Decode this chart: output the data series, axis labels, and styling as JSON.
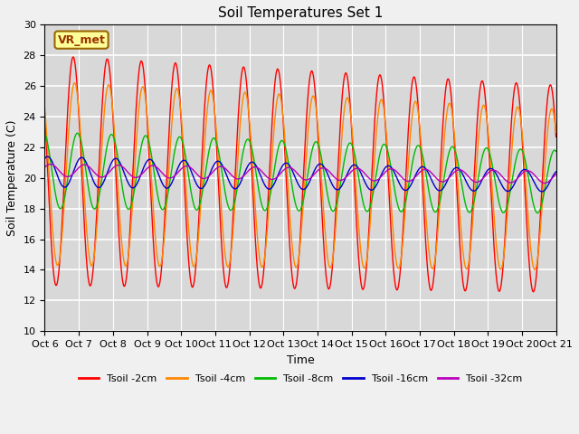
{
  "title": "Soil Temperatures Set 1",
  "xlabel": "Time",
  "ylabel": "Soil Temperature (C)",
  "ylim": [
    10,
    30
  ],
  "xlim": [
    0,
    360
  ],
  "plot_bg_color": "#d8d8d8",
  "fig_bg_color": "#f0f0f0",
  "grid_color": "#ffffff",
  "annotation_text": "VR_met",
  "annotation_bg": "#ffff99",
  "annotation_border": "#996600",
  "colors": [
    "#ff0000",
    "#ff8800",
    "#00bb00",
    "#0000cc",
    "#bb00bb"
  ],
  "legend_labels": [
    "Tsoil -2cm",
    "Tsoil -4cm",
    "Tsoil -8cm",
    "Tsoil -16cm",
    "Tsoil -32cm"
  ],
  "xtick_labels": [
    "Oct 6",
    "Oct 7",
    "Oct 8",
    "Oct 9",
    "Oct 10",
    "Oct 11",
    "Oct 12",
    "Oct 13",
    "Oct 14",
    "Oct 15",
    "Oct 16",
    "Oct 17",
    "Oct 18",
    "Oct 19",
    "Oct 20",
    "Oct 21"
  ],
  "xtick_positions": [
    0,
    24,
    48,
    72,
    96,
    120,
    144,
    168,
    192,
    216,
    240,
    264,
    288,
    312,
    336,
    360
  ],
  "yticks": [
    10,
    12,
    14,
    16,
    18,
    20,
    22,
    24,
    26,
    28,
    30
  ]
}
